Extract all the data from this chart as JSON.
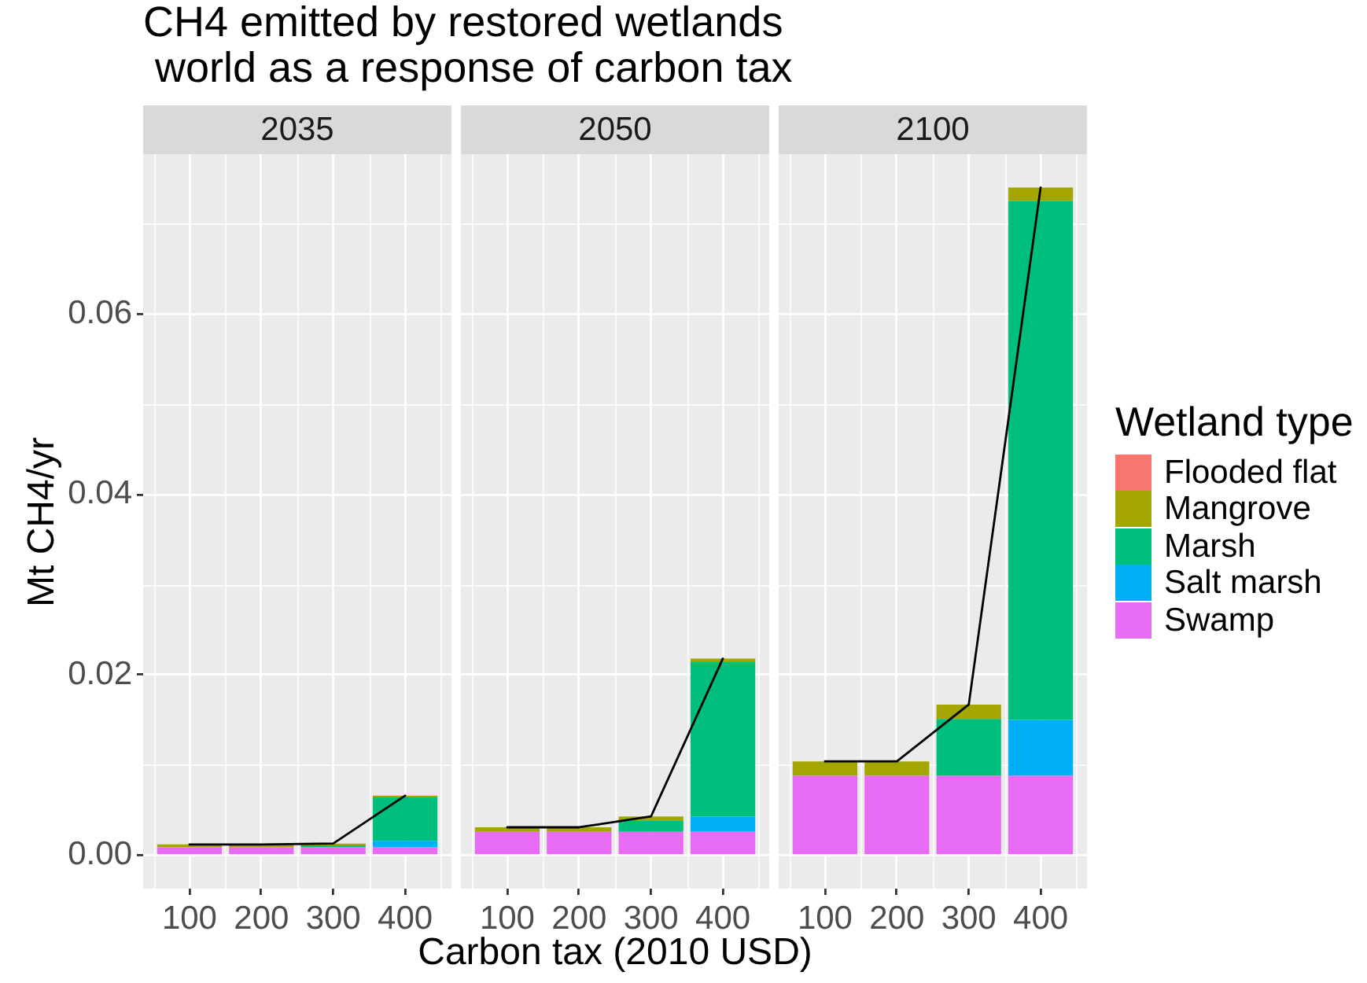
{
  "chart_data": [
    {
      "type": "bar",
      "title": "CH4 emitted by restored wetlands\n world as a response of carbon tax",
      "subtitle": "2035",
      "ylabel": "Mt CH4/yr",
      "x": [
        100,
        200,
        300,
        400
      ],
      "xlim": [
        35.5,
        464.5
      ],
      "xticks": [
        100,
        200,
        300,
        400
      ],
      "ylim": [
        -0.0037,
        0.0777
      ],
      "yticks": [
        {
          "value": 0,
          "label": "0.00"
        },
        0.02,
        0.04,
        0.06
      ],
      "stacked": true,
      "grid": true,
      "series": [
        {
          "color": "#e76bf3",
          "values": [
            0.0009,
            0.0009,
            0.0009,
            0.0009
          ]
        },
        {
          "color": "#00b0f6",
          "values": [
            0,
            0,
            0,
            0.0007
          ]
        },
        {
          "color": "#00bf7d",
          "values": [
            0,
            0,
            0.0002,
            0.0048
          ]
        },
        {
          "color": "#a3a500",
          "values": [
            0.0003,
            0.0003,
            0.0002,
            0.0002
          ]
        },
        {
          "color": "#f8766d",
          "values": [
            0,
            0,
            0,
            0
          ]
        },
        {
          "type": "line",
          "color": "#000000",
          "values": [
            0.0012,
            0.0012,
            0.0013,
            0.0066
          ]
        }
      ]
    },
    {
      "type": "bar",
      "subtitle": "2050",
      "xlabel": "Carbon tax (2010 USD)",
      "x": [
        100,
        200,
        300,
        400
      ],
      "xlim": [
        35.5,
        464.5
      ],
      "xticks": [
        100,
        200,
        300,
        400
      ],
      "ylim": [
        -0.0037,
        0.0777
      ],
      "yticks": [
        0,
        0.02,
        0.04,
        0.06
      ],
      "stacked": true,
      "grid": true,
      "tick_labels": "x",
      "series": [
        {
          "color": "#e76bf3",
          "values": [
            0.0026,
            0.0026,
            0.0026,
            0.0026
          ]
        },
        {
          "color": "#00b0f6",
          "values": [
            0,
            0,
            0,
            0.0017
          ]
        },
        {
          "color": "#00bf7d",
          "values": [
            0,
            0,
            0.0012,
            0.0171
          ]
        },
        {
          "color": "#a3a500",
          "values": [
            0.0005,
            0.0005,
            0.0005,
            0.0004
          ]
        },
        {
          "color": "#f8766d",
          "values": [
            0,
            0,
            0,
            0
          ]
        },
        {
          "type": "line",
          "color": "#000000",
          "values": [
            0.0031,
            0.0031,
            0.0043,
            0.0218
          ]
        }
      ]
    },
    {
      "type": "bar",
      "subtitle": "2100",
      "legend_title": "Wetland type",
      "legend": "right",
      "x": [
        100,
        200,
        300,
        400
      ],
      "xlim": [
        35.5,
        464.5
      ],
      "xticks": [
        100,
        200,
        300,
        400
      ],
      "ylim": [
        -0.0037,
        0.0777
      ],
      "yticks": [
        0,
        0.02,
        0.04,
        0.06
      ],
      "stacked": true,
      "grid": true,
      "tick_labels": "x",
      "series": [
        {
          "name": "Swamp",
          "color": "#e76bf3",
          "values": [
            0.0088,
            0.0088,
            0.0088,
            0.0088
          ]
        },
        {
          "name": "Salt marsh",
          "color": "#00b0f6",
          "values": [
            0,
            0,
            0,
            0.0062
          ]
        },
        {
          "name": "Marsh",
          "color": "#00bf7d",
          "values": [
            0,
            0,
            0.0063,
            0.0575
          ]
        },
        {
          "name": "Mangrove",
          "color": "#a3a500",
          "values": [
            0.0016,
            0.0016,
            0.0016,
            0.0015
          ]
        },
        {
          "name": "Flooded flat",
          "color": "#f8766d",
          "values": [
            0,
            0,
            0,
            0
          ]
        },
        {
          "type": "line",
          "color": "#000000",
          "values": [
            0.0104,
            0.0104,
            0.0167,
            0.074
          ]
        }
      ]
    }
  ]
}
